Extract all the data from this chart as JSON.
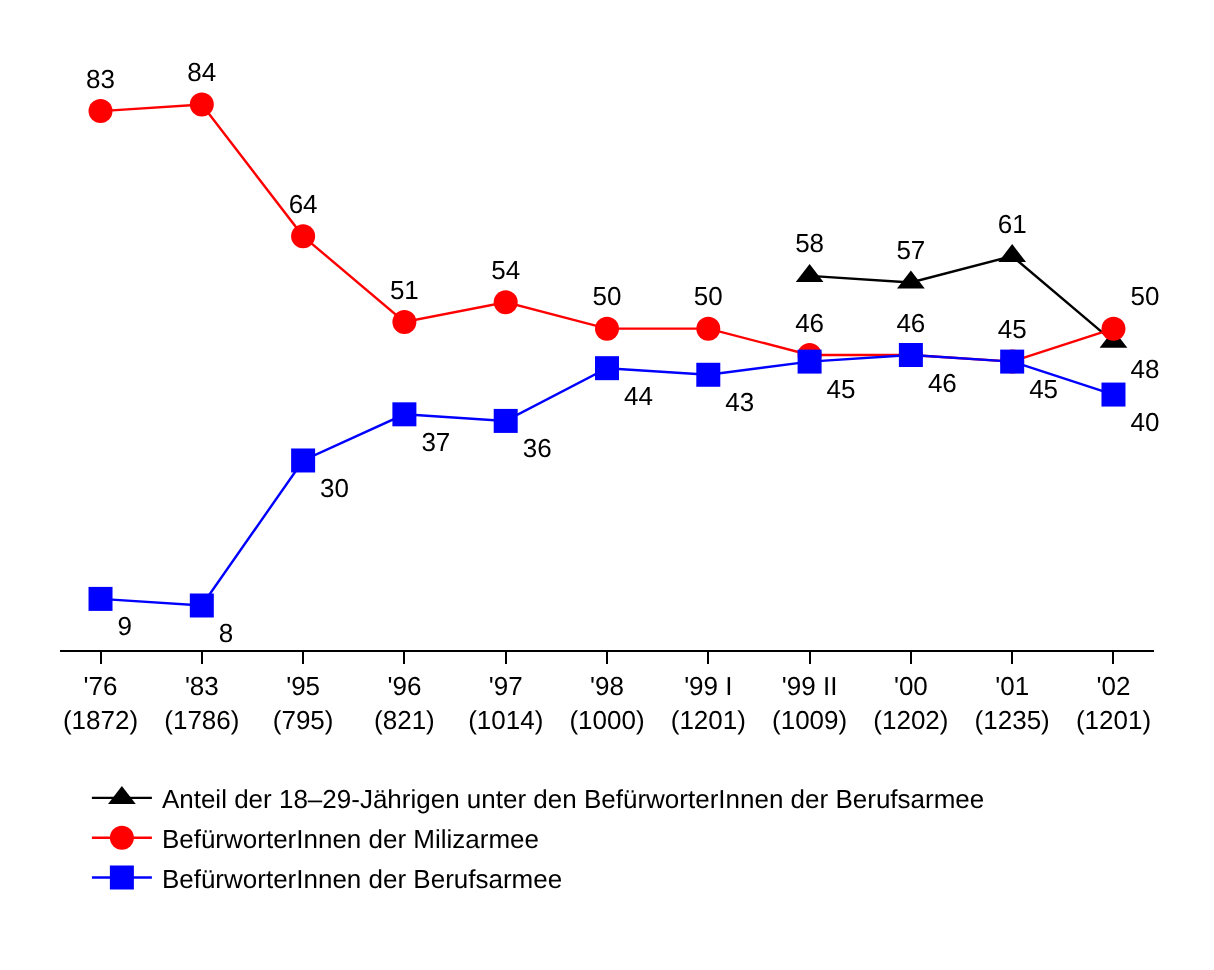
{
  "chart_data": {
    "type": "line",
    "categories": [
      "'76\n(1872)",
      "'83\n(1786)",
      "'95\n(795)",
      "'96\n(821)",
      "'97\n(1014)",
      "'98\n(1000)",
      "'99 I\n(1201)",
      "'99 II\n(1009)",
      "'00\n(1202)",
      "'01\n(1235)",
      "'02\n(1201)"
    ],
    "series": [
      {
        "name": "Anteil der 18–29-Jährigen unter den BefürworterInnen der Berufsarmee",
        "color": "#000000",
        "marker": "triangle",
        "values": [
          null,
          null,
          null,
          null,
          null,
          null,
          null,
          58,
          57,
          61,
          48
        ]
      },
      {
        "name": "BefürworterInnen der Milizarmee",
        "color": "#ff0000",
        "marker": "circle",
        "values": [
          83,
          84,
          64,
          51,
          54,
          50,
          50,
          46,
          46,
          45,
          50
        ]
      },
      {
        "name": "BefürworterInnen der Berufsarmee",
        "color": "#0000ff",
        "marker": "square",
        "values": [
          9,
          8,
          30,
          37,
          36,
          44,
          43,
          45,
          46,
          45,
          40
        ]
      }
    ],
    "data_labels": true,
    "legend": "bottom",
    "grid": false,
    "line_style": "solid"
  }
}
